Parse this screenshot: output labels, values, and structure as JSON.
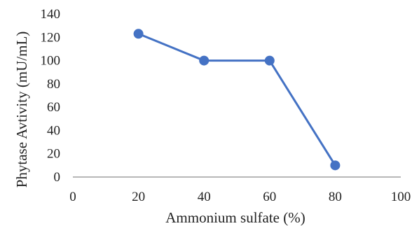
{
  "chart_data": {
    "type": "scatter",
    "title": "",
    "xlabel": "Ammonium sulfate (%)",
    "ylabel": "Phytase Avtivity (mU/mL)",
    "xlim": [
      0,
      100
    ],
    "ylim": [
      0,
      140
    ],
    "xticks": [
      0,
      20,
      40,
      60,
      80,
      100
    ],
    "yticks": [
      0,
      20,
      40,
      60,
      80,
      100,
      120,
      140
    ],
    "grid": false,
    "legend": "none",
    "series": [
      {
        "x": [
          20,
          40,
          60,
          80
        ],
        "y": [
          123,
          100,
          100,
          10
        ],
        "color": "#4472C4",
        "marker": "circle",
        "line": "straight"
      }
    ]
  }
}
